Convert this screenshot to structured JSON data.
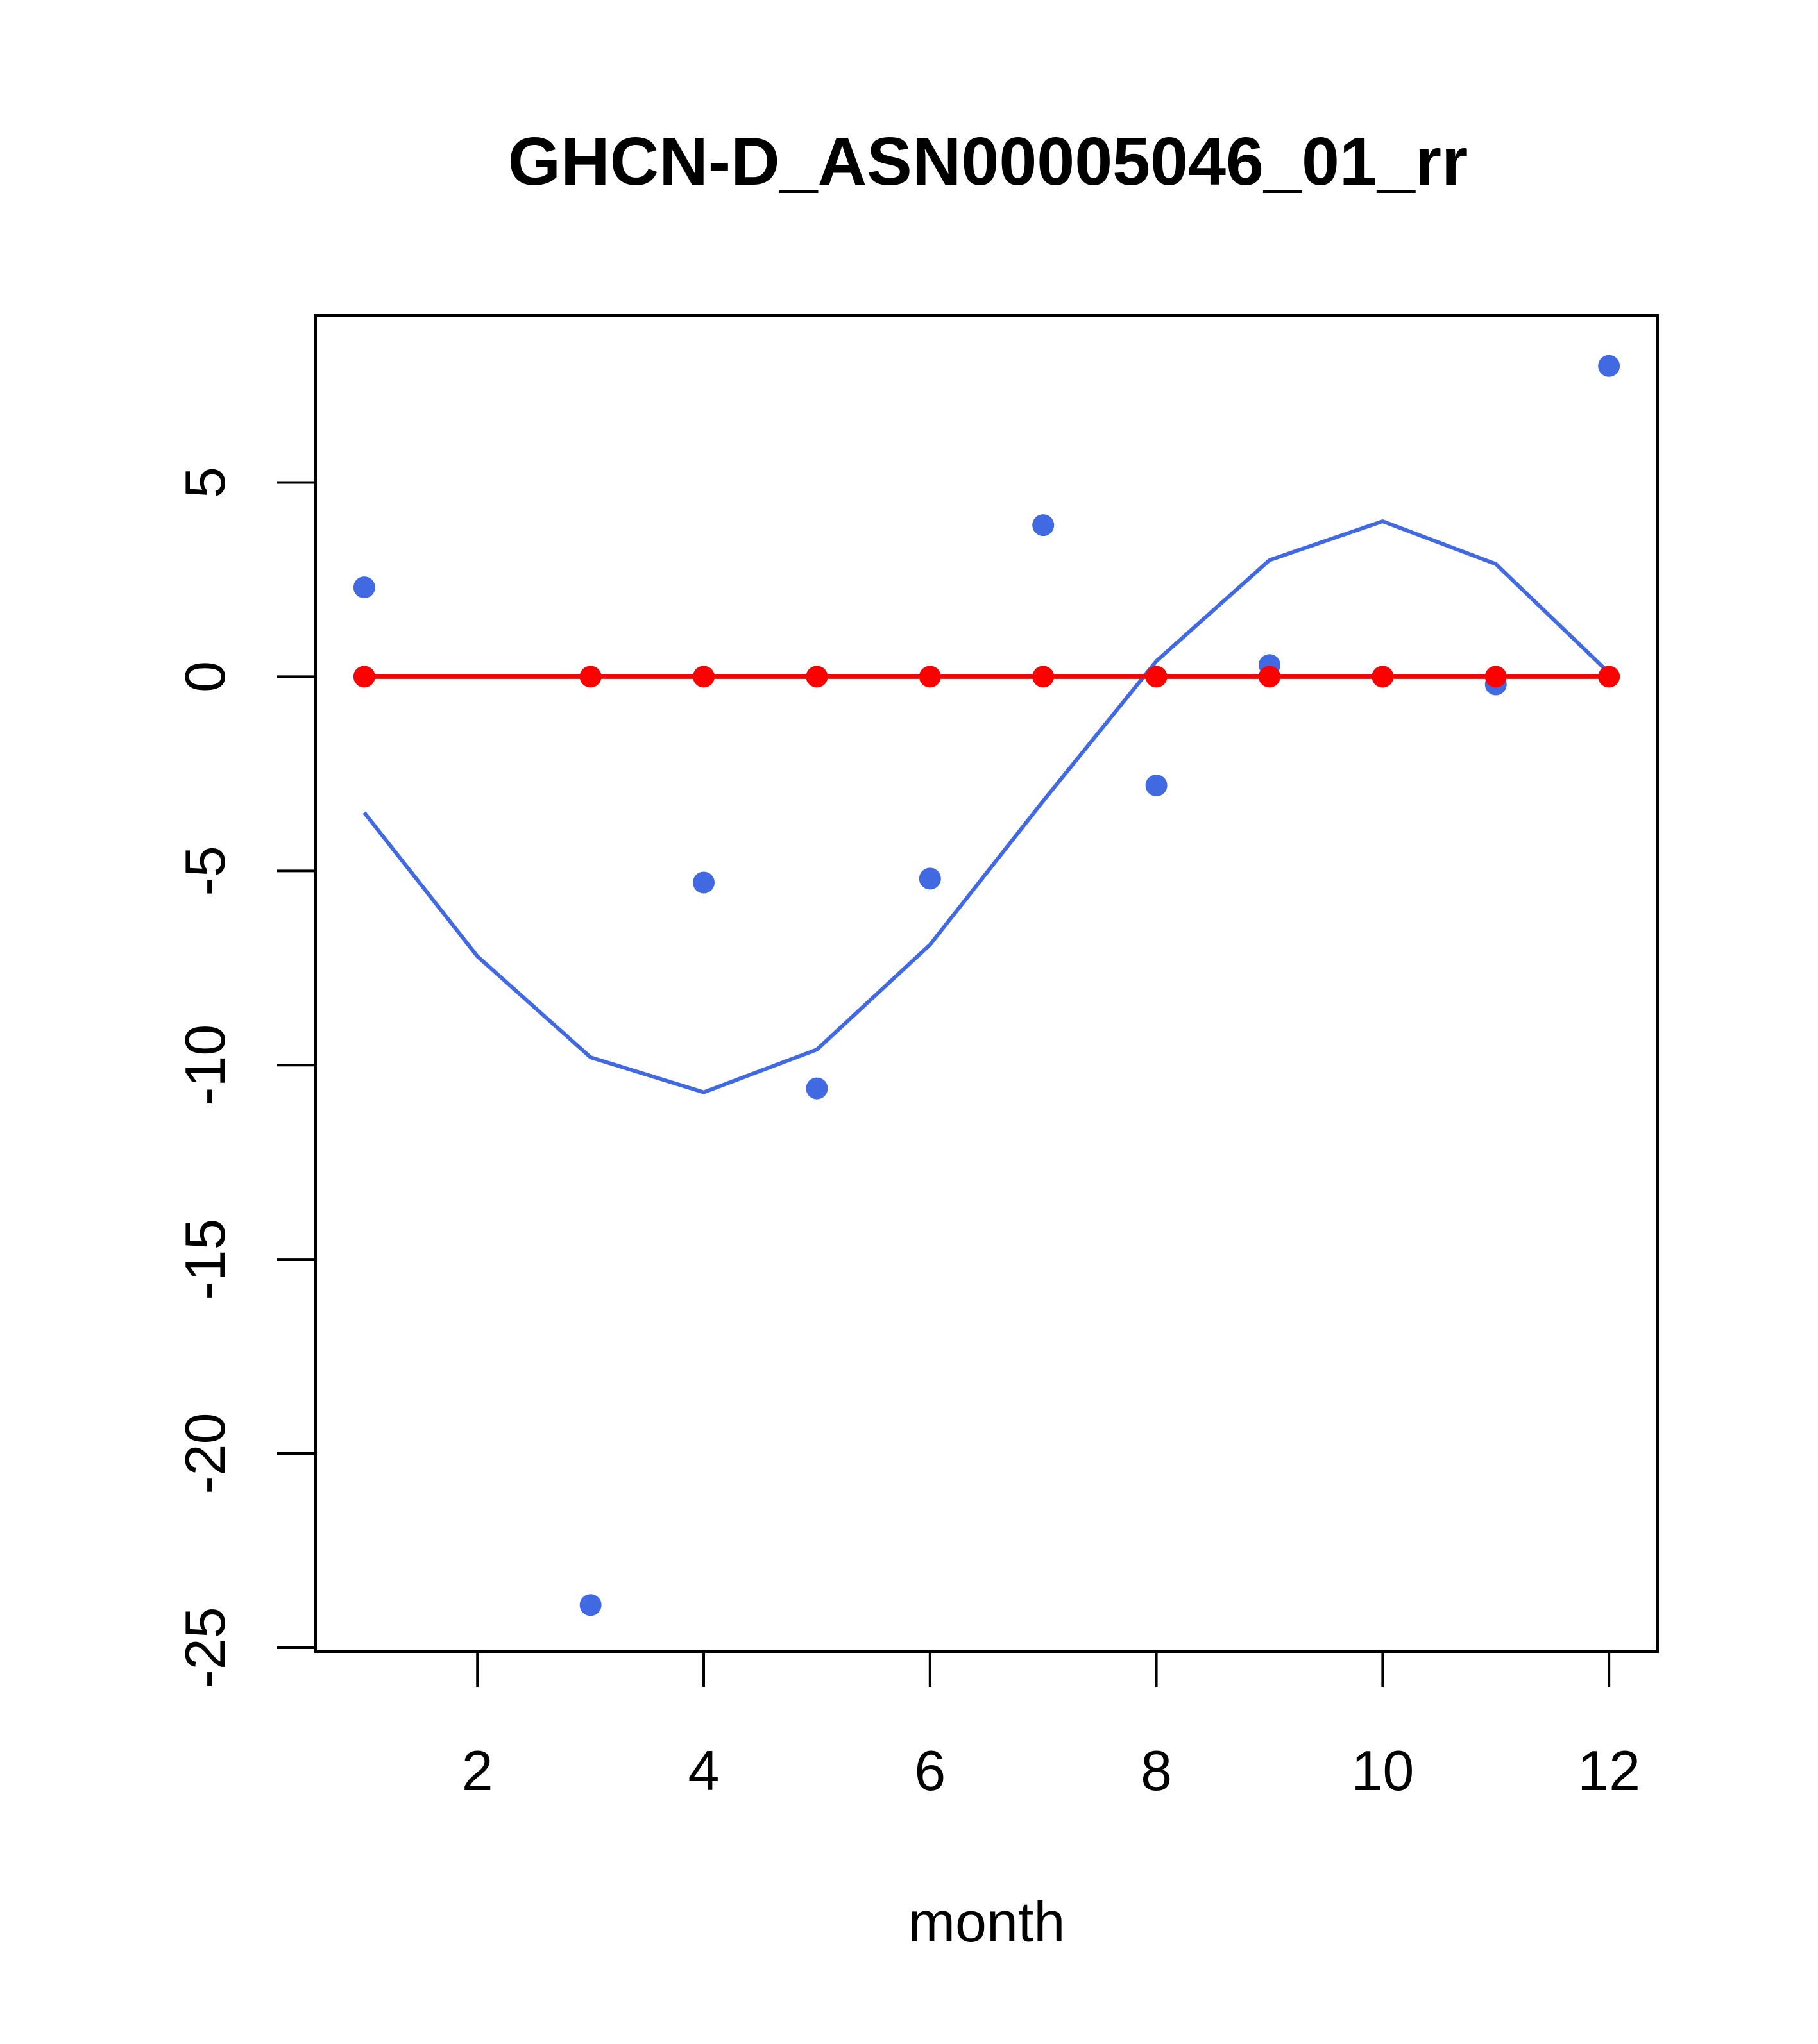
{
  "chart_data": {
    "type": "scatter",
    "title": "GHCN-D_ASN00005046_01_rr",
    "xlabel": "month",
    "ylabel": "",
    "xlim": [
      0.57,
      12.43
    ],
    "ylim": [
      -25.1,
      9.3
    ],
    "x_ticks": [
      2,
      4,
      6,
      8,
      10,
      12
    ],
    "y_ticks": [
      5,
      0,
      -5,
      -10,
      -15,
      -20,
      -25
    ],
    "grid": false,
    "legend": "none",
    "series": [
      {
        "style": "points",
        "color": "#4169e1",
        "x": [
          1,
          3,
          4,
          5,
          6,
          7,
          8,
          9,
          10,
          11,
          12
        ],
        "values": [
          2.3,
          -23.9,
          -5.3,
          -10.6,
          -5.2,
          3.9,
          -2.8,
          0.3,
          0.0,
          -0.2,
          8.0
        ]
      },
      {
        "style": "line",
        "color": "#4169e1",
        "x": [
          1,
          2,
          3,
          4,
          5,
          6,
          7,
          8,
          9,
          10,
          11,
          12
        ],
        "values": [
          -3.5,
          -7.2,
          -9.8,
          -10.7,
          -9.6,
          -6.9,
          -3.2,
          0.4,
          3.0,
          4.0,
          2.9,
          0.1
        ]
      },
      {
        "style": "line-points",
        "color": "#ff0000",
        "x": [
          1,
          3,
          4,
          5,
          6,
          7,
          8,
          9,
          10,
          11,
          12
        ],
        "values": [
          0,
          0,
          0,
          0,
          0,
          0,
          0,
          0,
          0,
          0,
          0
        ]
      }
    ]
  }
}
